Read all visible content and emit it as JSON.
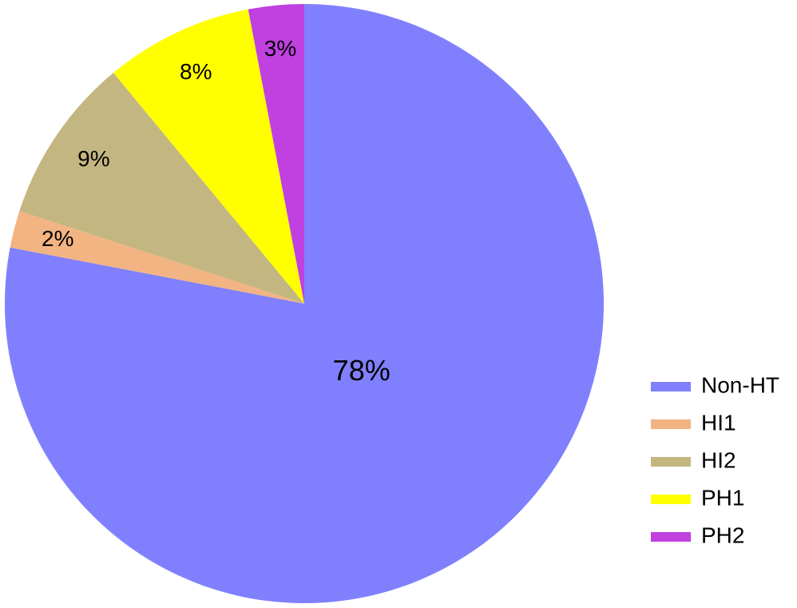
{
  "chart_data": {
    "type": "pie",
    "categories": [
      "Non-HT",
      "HI1",
      "HI2",
      "PH1",
      "PH2"
    ],
    "values": [
      78,
      2,
      9,
      8,
      3
    ],
    "value_labels": [
      "78%",
      "2%",
      "9%",
      "8%",
      "3%"
    ],
    "colors": [
      "#8080ff",
      "#f2b482",
      "#c4b680",
      "#ffff00",
      "#c040e0"
    ],
    "legend": "right"
  }
}
